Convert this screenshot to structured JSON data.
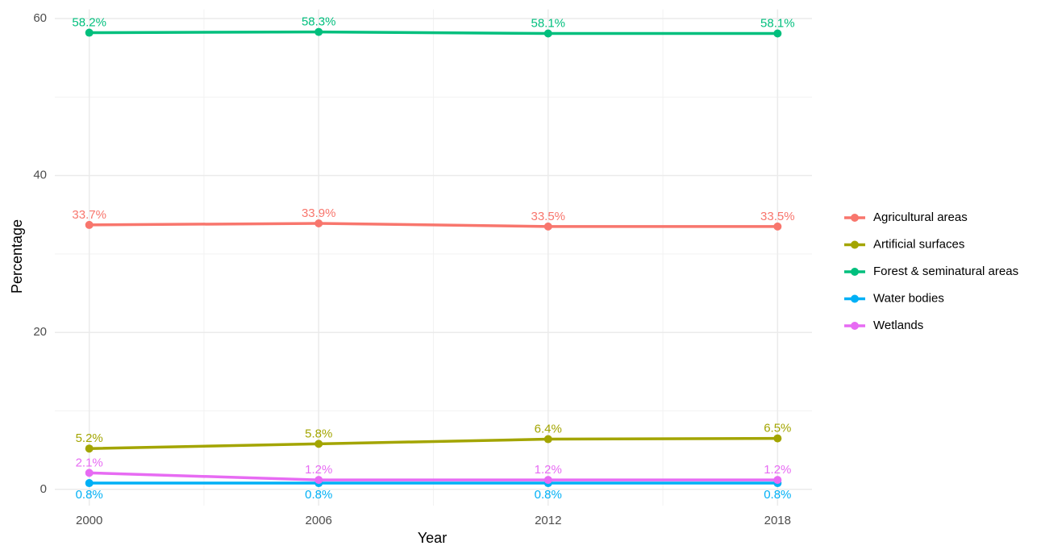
{
  "chart_data": {
    "type": "line",
    "x_label": "Year",
    "y_label": "Percentage",
    "x": [
      2000,
      2006,
      2012,
      2018
    ],
    "xlim": [
      1999.1,
      2018.9
    ],
    "xticks": [
      2000,
      2006,
      2012,
      2018
    ],
    "ylim": [
      -2.075,
      61.175
    ],
    "yticks": [
      0,
      20,
      40,
      60
    ],
    "grid": true,
    "legend": "right",
    "series": [
      {
        "name": "Agricultural areas",
        "color": "#F8766D",
        "values": [
          33.7,
          33.9,
          33.5,
          33.5
        ],
        "value_labels": [
          "33.7%",
          "33.9%",
          "33.5%",
          "33.5%"
        ]
      },
      {
        "name": "Artificial surfaces",
        "color": "#A3A500",
        "values": [
          5.2,
          5.8,
          6.4,
          6.5
        ],
        "value_labels": [
          "5.2%",
          "5.8%",
          "6.4%",
          "6.5%"
        ]
      },
      {
        "name": "Forest & seminatural areas",
        "color": "#00BF7D",
        "values": [
          58.2,
          58.3,
          58.1,
          58.1
        ],
        "value_labels": [
          "58.2%",
          "58.3%",
          "58.1%",
          "58.1%"
        ]
      },
      {
        "name": "Water bodies",
        "color": "#00B0F6",
        "values": [
          0.8,
          0.8,
          0.8,
          0.8
        ],
        "value_labels": [
          "0.8%",
          "0.8%",
          "0.8%",
          "0.8%"
        ]
      },
      {
        "name": "Wetlands",
        "color": "#E76BF3",
        "values": [
          2.1,
          1.2,
          1.2,
          1.2
        ],
        "value_labels": [
          "2.1%",
          "1.2%",
          "1.2%",
          "1.2%"
        ]
      }
    ]
  }
}
